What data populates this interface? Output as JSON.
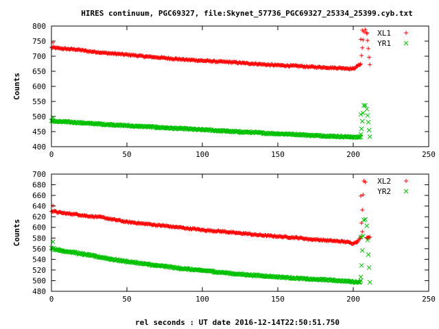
{
  "page_title": "HIRES continuum, PGC69327, file:Skynet_57736_PGC69327_25334_25399.cyb.txt",
  "xlabel": "rel seconds : UT date 2016-12-14T22:50:51.750",
  "colors": {
    "red": "#ff0000",
    "green": "#00c000",
    "frame": "#000000"
  },
  "chart_data": [
    {
      "type": "scatter",
      "ylabel": "Counts",
      "xlim": [
        0,
        250
      ],
      "ylim": [
        400,
        800
      ],
      "xticks": [
        0,
        50,
        100,
        150,
        200,
        250
      ],
      "yticks": [
        400,
        450,
        500,
        550,
        600,
        650,
        700,
        750,
        800
      ],
      "legend_position": "top-right",
      "series": [
        {
          "name": "XL1",
          "marker": "plus",
          "color": "#ff0000",
          "x": [
            0,
            5,
            10,
            15,
            20,
            25,
            30,
            35,
            40,
            45,
            50,
            55,
            60,
            65,
            70,
            75,
            80,
            85,
            90,
            95,
            100,
            105,
            110,
            115,
            120,
            125,
            130,
            135,
            140,
            145,
            150,
            155,
            160,
            165,
            170,
            175,
            180,
            185,
            190,
            195,
            200,
            203,
            205,
            207,
            208,
            209,
            211
          ],
          "y": [
            729,
            726,
            724,
            723,
            720,
            716,
            714,
            711,
            709,
            707,
            705,
            703,
            700,
            698,
            696,
            694,
            692,
            690,
            688,
            687,
            685,
            684,
            682,
            681,
            680,
            678,
            676,
            675,
            673,
            671,
            670,
            669,
            668,
            667,
            665,
            664,
            663,
            662,
            661,
            660,
            658,
            668,
            675,
            781,
            788,
            778,
            672
          ],
          "extra_points": [
            [
              1,
              745
            ],
            [
              205,
              756
            ],
            [
              206,
              786
            ],
            [
              209,
              775
            ]
          ]
        },
        {
          "name": "YR1",
          "marker": "cross",
          "color": "#00c000",
          "x": [
            0,
            5,
            10,
            15,
            20,
            25,
            30,
            35,
            40,
            45,
            50,
            55,
            60,
            65,
            70,
            75,
            80,
            85,
            90,
            95,
            100,
            105,
            110,
            115,
            120,
            125,
            130,
            135,
            140,
            145,
            150,
            155,
            160,
            165,
            170,
            175,
            180,
            185,
            190,
            195,
            200,
            203,
            205,
            207,
            208,
            209,
            211
          ],
          "y": [
            485,
            483,
            482,
            481,
            479,
            477,
            476,
            474,
            473,
            471,
            470,
            468,
            467,
            466,
            464,
            463,
            461,
            460,
            459,
            457,
            456,
            455,
            453,
            452,
            450,
            449,
            448,
            447,
            445,
            444,
            443,
            442,
            441,
            440,
            438,
            437,
            436,
            435,
            434,
            433,
            432,
            431,
            433,
            537,
            537,
            526,
            433
          ],
          "extra_points": [
            [
              1,
              496
            ],
            [
              205,
              507
            ],
            [
              205,
              441
            ]
          ]
        }
      ]
    },
    {
      "type": "scatter",
      "ylabel": "Counts",
      "xlim": [
        0,
        250
      ],
      "ylim": [
        480,
        700
      ],
      "xticks": [
        0,
        50,
        100,
        150,
        200,
        250
      ],
      "yticks": [
        480,
        500,
        520,
        540,
        560,
        580,
        600,
        620,
        640,
        660,
        680,
        700
      ],
      "legend_position": "top-right",
      "series": [
        {
          "name": "XL2",
          "marker": "plus",
          "color": "#ff0000",
          "x": [
            0,
            5,
            10,
            15,
            20,
            25,
            30,
            35,
            40,
            45,
            50,
            55,
            60,
            65,
            70,
            75,
            80,
            85,
            90,
            95,
            100,
            105,
            110,
            115,
            120,
            125,
            130,
            135,
            140,
            145,
            150,
            155,
            160,
            165,
            170,
            175,
            180,
            185,
            190,
            195,
            200,
            203,
            205,
            207,
            208,
            209,
            211
          ],
          "y": [
            631,
            628,
            626,
            625,
            623,
            621,
            620,
            618,
            615,
            613,
            610,
            609,
            607,
            606,
            604,
            603,
            601,
            600,
            598,
            597,
            595,
            594,
            593,
            592,
            590,
            589,
            588,
            586,
            585,
            584,
            583,
            582,
            581,
            580,
            578,
            577,
            576,
            575,
            574,
            573,
            570,
            574,
            581,
            687,
            685,
            581,
            582
          ],
          "extra_points": [
            [
              1,
              641
            ],
            [
              205,
              659
            ],
            [
              206,
              592
            ],
            [
              209,
              581
            ]
          ]
        },
        {
          "name": "YR2",
          "marker": "cross",
          "color": "#00c000",
          "x": [
            0,
            5,
            10,
            15,
            20,
            25,
            30,
            35,
            40,
            45,
            50,
            55,
            60,
            65,
            70,
            75,
            80,
            85,
            90,
            95,
            100,
            105,
            110,
            115,
            120,
            125,
            130,
            135,
            140,
            145,
            150,
            155,
            160,
            165,
            170,
            175,
            180,
            185,
            190,
            195,
            200,
            203,
            205,
            207,
            208,
            209,
            211
          ],
          "y": [
            561,
            557,
            555,
            553,
            550,
            548,
            545,
            543,
            540,
            538,
            536,
            534,
            532,
            530,
            528,
            527,
            525,
            523,
            522,
            520,
            519,
            518,
            516,
            515,
            513,
            512,
            511,
            510,
            509,
            508,
            507,
            506,
            505,
            504,
            503,
            502,
            502,
            501,
            500,
            499,
            498,
            497,
            499,
            614,
            615,
            603,
            497
          ],
          "extra_points": [
            [
              1,
              573
            ],
            [
              205,
              507
            ],
            [
              205,
              582
            ]
          ]
        }
      ]
    }
  ]
}
